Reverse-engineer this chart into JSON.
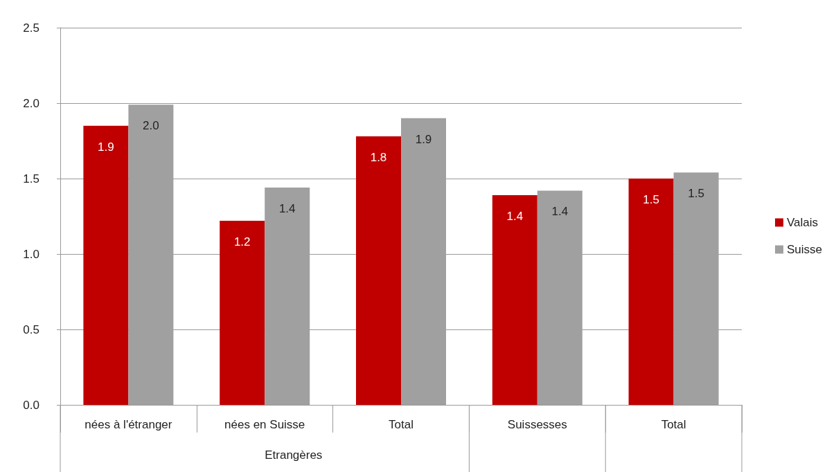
{
  "chart_data": {
    "type": "bar",
    "categories": [
      "nées à l'étranger",
      "nées en Suisse",
      "Total",
      "Suissesses",
      "Total"
    ],
    "series": [
      {
        "name": "Valais",
        "color": "#c00000",
        "values": [
          1.85,
          1.22,
          1.78,
          1.39,
          1.5
        ],
        "value_labels": [
          "1.9",
          "1.2",
          "1.8",
          "1.4",
          "1.5"
        ]
      },
      {
        "name": "Suisse",
        "color": "#a0a0a0",
        "values": [
          1.99,
          1.44,
          1.9,
          1.42,
          1.54
        ],
        "value_labels": [
          "2.0",
          "1.4",
          "1.9",
          "1.4",
          "1.5"
        ]
      }
    ],
    "annotations": [
      "Etrangères"
    ],
    "ylim": [
      0,
      2.5
    ],
    "yticks": [
      "0.0",
      "0.5",
      "1.0",
      "1.5",
      "2.0",
      "2.5"
    ],
    "grid": "y",
    "legend": "right"
  }
}
